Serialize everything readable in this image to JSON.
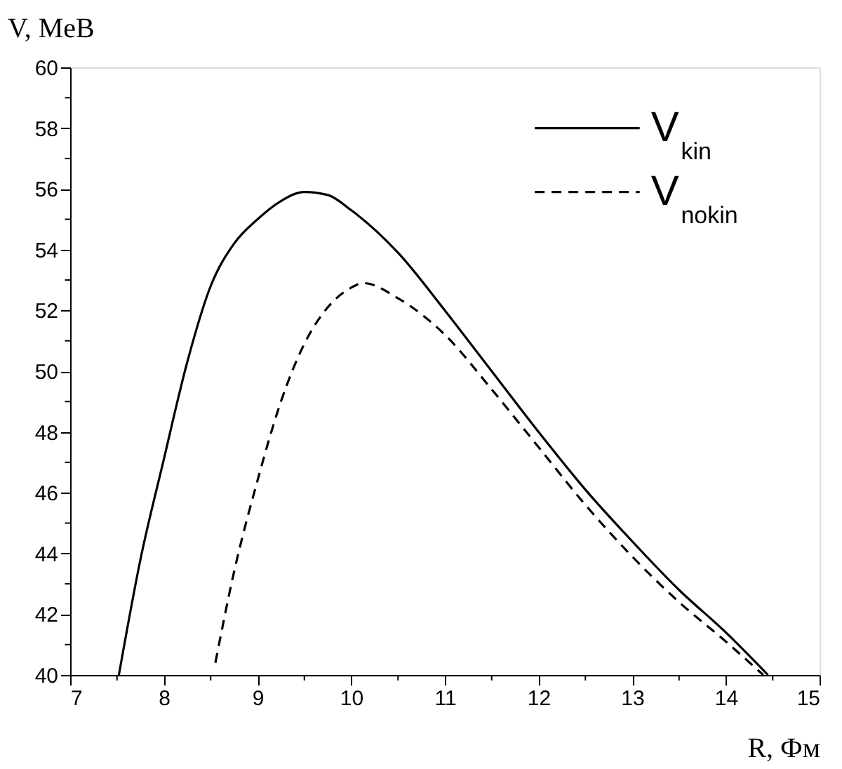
{
  "chart_data": {
    "type": "line",
    "xlabel": "R, Фм",
    "ylabel": "V, MeB",
    "xlim": [
      7,
      15
    ],
    "ylim": [
      40,
      60
    ],
    "xticks": [
      7,
      {
        "value": 7.5,
        "label": null
      },
      8,
      {
        "value": 8.5,
        "label": null
      },
      9,
      {
        "value": 9.5,
        "label": null
      },
      10,
      {
        "value": 10.5,
        "label": null
      },
      11,
      {
        "value": 11.5,
        "label": null
      },
      12,
      {
        "value": 12.5,
        "label": null
      },
      13,
      {
        "value": 13.5,
        "label": null
      },
      14,
      {
        "value": 14.5,
        "label": null
      },
      15
    ],
    "yticks": [
      40,
      {
        "value": 41,
        "label": null
      },
      42,
      {
        "value": 43,
        "label": null
      },
      44,
      {
        "value": 45,
        "label": null
      },
      46,
      {
        "value": 47,
        "label": null
      },
      48,
      {
        "value": 49,
        "label": null
      },
      50,
      {
        "value": 51,
        "label": null
      },
      52,
      {
        "value": 53,
        "label": null
      },
      54,
      {
        "value": 55,
        "label": null
      },
      56,
      {
        "value": 57,
        "label": null
      },
      58,
      {
        "value": 59,
        "label": null
      },
      60
    ],
    "legend": "top right",
    "grid": false,
    "marker": "none",
    "series": [
      {
        "name": "V$_{kin}$",
        "color": "#000000",
        "line_style": "solid",
        "x": [
          7.52,
          7.75,
          8,
          8.25,
          8.5,
          8.75,
          9,
          9.25,
          9.5,
          9.75,
          10,
          10.5,
          11,
          11.5,
          12,
          12.5,
          13,
          13.5,
          14,
          14.45
        ],
        "values": [
          40,
          43.8,
          47.1,
          50.3,
          52.8,
          54.2,
          55.0,
          55.6,
          55.9,
          55.8,
          55.3,
          53.9,
          52.0,
          50.0,
          48.0,
          46.1,
          44.4,
          42.8,
          41.4,
          40
        ]
      },
      {
        "name": "V$_{nokin}$",
        "color": "#000000",
        "line_style": "dashed",
        "x": [
          8.55,
          8.75,
          9,
          9.25,
          9.5,
          9.75,
          10,
          10.13,
          10.5,
          11,
          11.5,
          12,
          12.5,
          13,
          13.5,
          14,
          14.4
        ],
        "values": [
          40.4,
          43.4,
          46.4,
          49.0,
          50.9,
          52.1,
          52.75,
          52.9,
          52.4,
          51.2,
          49.4,
          47.5,
          45.6,
          43.9,
          42.4,
          41.1,
          40
        ]
      }
    ]
  }
}
